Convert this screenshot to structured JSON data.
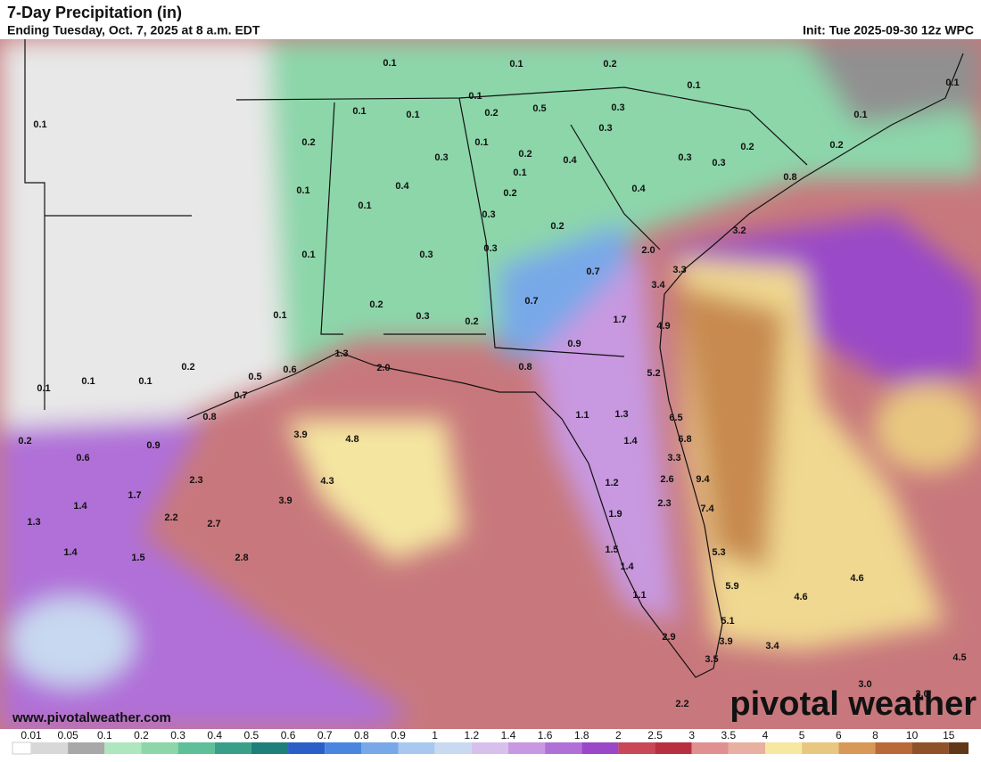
{
  "header": {
    "title": "7-Day Precipitation (in)",
    "subtitle": "Ending Tuesday, Oct. 7, 2025 at 8 a.m. EDT",
    "init": "Init: Tue 2025-09-30 12z WPC"
  },
  "map": {
    "labels": [
      "0.1",
      "0.1",
      "0.2",
      "0.1",
      "0.1",
      "0.1",
      "0.1",
      "0.1",
      "0.2",
      "0.5",
      "0.3",
      "0.1",
      "0.1",
      "0.3",
      "0.2",
      "0.1",
      "0.2",
      "0.2",
      "0.2",
      "0.3",
      "0.4",
      "0.3",
      "0.3",
      "0.1",
      "0.8",
      "0.4",
      "0.1",
      "0.2",
      "0.4",
      "0.1",
      "0.3",
      "0.2",
      "3.2",
      "2.0",
      "0.3",
      "0.3",
      "0.1",
      "0.7",
      "3.3",
      "3.4",
      "0.7",
      "0.2",
      "0.1",
      "0.3",
      "0.2",
      "1.7",
      "4.9",
      "0.9",
      "1.3",
      "2.0",
      "0.8",
      "5.2",
      "0.2",
      "0.6",
      "0.5",
      "0.1",
      "0.1",
      "0.1",
      "0.7",
      "1.1",
      "1.3",
      "6.5",
      "0.8",
      "3.9",
      "4.8",
      "1.4",
      "6.8",
      "0.2",
      "0.9",
      "0.6",
      "3.3",
      "2.3",
      "4.3",
      "1.2",
      "2.6",
      "9.4",
      "1.7",
      "3.9",
      "2.3",
      "1.4",
      "7.4",
      "1.9",
      "2.2",
      "1.3",
      "2.7",
      "1.4",
      "1.5",
      "2.8",
      "1.5",
      "5.3",
      "1.4",
      "4.6",
      "5.9",
      "1.1",
      "4.6",
      "5.1",
      "2.9",
      "3.9",
      "3.4",
      "3.5",
      "4.5",
      "3.0",
      "3.0",
      "2.2"
    ]
  },
  "footer": {
    "website": "www.pivotalweather.com",
    "brand": "pivotal weather"
  },
  "legend": {
    "labels": [
      "0.01",
      "0.05",
      "0.1",
      "0.2",
      "0.3",
      "0.4",
      "0.5",
      "0.6",
      "0.7",
      "0.8",
      "0.9",
      "1",
      "1.2",
      "1.4",
      "1.6",
      "1.8",
      "2",
      "2.5",
      "3",
      "3.5",
      "4",
      "5",
      "6",
      "8",
      "10",
      "15"
    ],
    "colors": [
      "#d8d8d8",
      "#a8a8a8",
      "#aee6c0",
      "#8cd6aa",
      "#5fbf98",
      "#3a9f88",
      "#1f7f7a",
      "#2a5fc8",
      "#4a86e0",
      "#78a8e8",
      "#a8c8f0",
      "#c9d9f2",
      "#d8c0ec",
      "#c898e0",
      "#b070d8",
      "#9a48c8",
      "#c84858",
      "#b83040",
      "#e09090",
      "#e8b0a0",
      "#f6e8a0",
      "#e8c880",
      "#d89858",
      "#b86a38",
      "#905028",
      "#603818"
    ]
  }
}
